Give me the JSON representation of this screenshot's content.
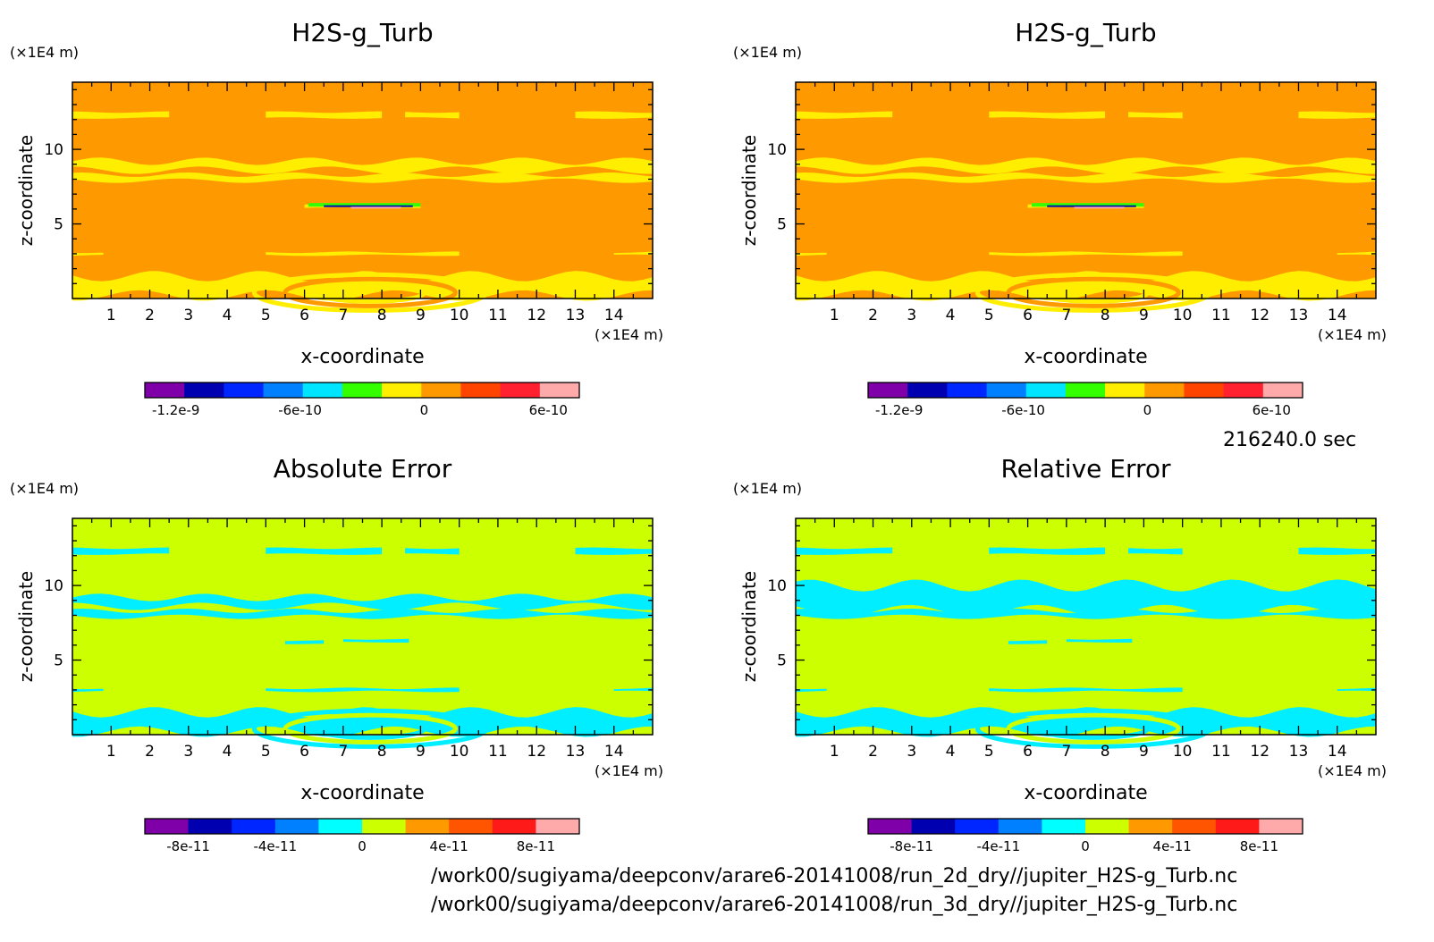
{
  "time_label": "216240.0 sec",
  "files": [
    "/work00/sugiyama/deepconv/arare6-20141008/run_2d_dry//jupiter_H2S-g_Turb.nc",
    "/work00/sugiyama/deepconv/arare6-20141008/run_3d_dry//jupiter_H2S-g_Turb.nc"
  ],
  "colors": {
    "field_background": "#ff9900",
    "field_secondary": "#ffee00",
    "error_background": "#ccff00",
    "error_secondary": "#00eeff"
  },
  "chart_data": [
    {
      "type": "heatmap",
      "title": "H2S-g_Turb",
      "xlabel": "x-coordinate",
      "ylabel": "z-coordinate",
      "x_unit": "(×1E4 m)",
      "y_unit": "(×1E4 m)",
      "xlim": [
        0,
        15
      ],
      "ylim": [
        0,
        14.5
      ],
      "x_ticks": [
        1,
        2,
        3,
        4,
        5,
        6,
        7,
        8,
        9,
        10,
        11,
        12,
        13,
        14
      ],
      "y_ticks": [
        5,
        10
      ],
      "colorbar": {
        "colors": [
          "#7f00a8",
          "#0000b0",
          "#0026ff",
          "#0080ff",
          "#00e5ff",
          "#33ff00",
          "#ffee00",
          "#ff9900",
          "#ff4400",
          "#ff2030",
          "#ffaaaa"
        ],
        "tick_labels": [
          "-1.2e-9",
          "-6e-10",
          "0",
          "6e-10"
        ],
        "tick_values": [
          -1.2e-09,
          -6e-10,
          0,
          6e-10
        ],
        "range": [
          -1.35e-09,
          7.5e-10
        ]
      }
    },
    {
      "type": "heatmap",
      "title": "H2S-g_Turb",
      "xlabel": "x-coordinate",
      "ylabel": "z-coordinate",
      "x_unit": "(×1E4 m)",
      "y_unit": "(×1E4 m)",
      "xlim": [
        0,
        15
      ],
      "ylim": [
        0,
        14.5
      ],
      "x_ticks": [
        1,
        2,
        3,
        4,
        5,
        6,
        7,
        8,
        9,
        10,
        11,
        12,
        13,
        14
      ],
      "y_ticks": [
        5,
        10
      ],
      "colorbar": {
        "colors": [
          "#7f00a8",
          "#0000b0",
          "#0026ff",
          "#0080ff",
          "#00e5ff",
          "#33ff00",
          "#ffee00",
          "#ff9900",
          "#ff4400",
          "#ff2030",
          "#ffaaaa"
        ],
        "tick_labels": [
          "-1.2e-9",
          "-6e-10",
          "0",
          "6e-10"
        ],
        "tick_values": [
          -1.2e-09,
          -6e-10,
          0,
          6e-10
        ],
        "range": [
          -1.35e-09,
          7.5e-10
        ]
      }
    },
    {
      "type": "heatmap",
      "title": "Absolute Error",
      "xlabel": "x-coordinate",
      "ylabel": "z-coordinate",
      "x_unit": "(×1E4 m)",
      "y_unit": "(×1E4 m)",
      "xlim": [
        0,
        15
      ],
      "ylim": [
        0,
        14.5
      ],
      "x_ticks": [
        1,
        2,
        3,
        4,
        5,
        6,
        7,
        8,
        9,
        10,
        11,
        12,
        13,
        14
      ],
      "y_ticks": [
        5,
        10
      ],
      "colorbar": {
        "colors": [
          "#7f00a8",
          "#0000b0",
          "#0026ff",
          "#0080ff",
          "#00ffff",
          "#ccff00",
          "#ff9900",
          "#ff5500",
          "#ff1a1a",
          "#ffaaaa"
        ],
        "tick_labels": [
          "-8e-11",
          "-4e-11",
          "0",
          "4e-11",
          "8e-11"
        ],
        "tick_values": [
          -8e-11,
          -4e-11,
          0,
          4e-11,
          8e-11
        ],
        "range": [
          -1e-10,
          1e-10
        ]
      }
    },
    {
      "type": "heatmap",
      "title": "Relative Error",
      "xlabel": "x-coordinate",
      "ylabel": "z-coordinate",
      "x_unit": "(×1E4 m)",
      "y_unit": "(×1E4 m)",
      "xlim": [
        0,
        15
      ],
      "ylim": [
        0,
        14.5
      ],
      "x_ticks": [
        1,
        2,
        3,
        4,
        5,
        6,
        7,
        8,
        9,
        10,
        11,
        12,
        13,
        14
      ],
      "y_ticks": [
        5,
        10
      ],
      "colorbar": {
        "colors": [
          "#7f00a8",
          "#0000b0",
          "#0026ff",
          "#0080ff",
          "#00ffff",
          "#ccff00",
          "#ff9900",
          "#ff5500",
          "#ff1a1a",
          "#ffaaaa"
        ],
        "tick_labels": [
          "-8e-11",
          "-4e-11",
          "0",
          "4e-11",
          "8e-11"
        ],
        "tick_values": [
          -8e-11,
          -4e-11,
          0,
          4e-11,
          8e-11
        ],
        "range": [
          -1e-10,
          1e-10
        ]
      }
    }
  ]
}
